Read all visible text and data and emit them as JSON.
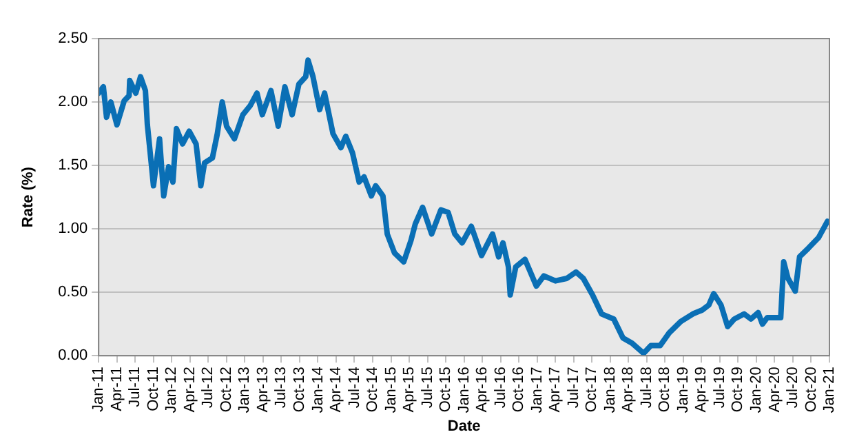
{
  "chart_data": {
    "type": "line",
    "xlabel": "Date",
    "ylabel": "Rate (%)",
    "xlim": [
      "2011-01",
      "2021-01"
    ],
    "xticks": [
      {
        "value": "2011-01",
        "label": "Jan-11"
      },
      {
        "value": "2011-04",
        "label": "Apr-11"
      },
      {
        "value": "2011-07",
        "label": "Jul-11"
      },
      {
        "value": "2011-10",
        "label": "Oct-11"
      },
      {
        "value": "2012-01",
        "label": "Jan-12"
      },
      {
        "value": "2012-04",
        "label": "Apr-12"
      },
      {
        "value": "2012-07",
        "label": "Jul-12"
      },
      {
        "value": "2012-10",
        "label": "Oct-12"
      },
      {
        "value": "2013-01",
        "label": "Jan-13"
      },
      {
        "value": "2013-04",
        "label": "Apr-13"
      },
      {
        "value": "2013-07",
        "label": "Jul-13"
      },
      {
        "value": "2013-10",
        "label": "Oct-13"
      },
      {
        "value": "2014-01",
        "label": "Jan-14"
      },
      {
        "value": "2014-04",
        "label": "Apr-14"
      },
      {
        "value": "2014-07",
        "label": "Jul-14"
      },
      {
        "value": "2014-10",
        "label": "Oct-14"
      },
      {
        "value": "2015-01",
        "label": "Jan-15"
      },
      {
        "value": "2015-04",
        "label": "Apr-15"
      },
      {
        "value": "2015-07",
        "label": "Jul-15"
      },
      {
        "value": "2015-10",
        "label": "Oct-15"
      },
      {
        "value": "2016-01",
        "label": "Jan-16"
      },
      {
        "value": "2016-04",
        "label": "Apr-16"
      },
      {
        "value": "2016-07",
        "label": "Jul-16"
      },
      {
        "value": "2016-10",
        "label": "Oct-16"
      },
      {
        "value": "2017-01",
        "label": "Jan-17"
      },
      {
        "value": "2017-04",
        "label": "Apr-17"
      },
      {
        "value": "2017-07",
        "label": "Jul-17"
      },
      {
        "value": "2017-10",
        "label": "Oct-17"
      },
      {
        "value": "2018-01",
        "label": "Jan-18"
      },
      {
        "value": "2018-04",
        "label": "Apr-18"
      },
      {
        "value": "2018-07",
        "label": "Jul-18"
      },
      {
        "value": "2018-10",
        "label": "Oct-18"
      },
      {
        "value": "2019-01",
        "label": "Jan-19"
      },
      {
        "value": "2019-04",
        "label": "Apr-19"
      },
      {
        "value": "2019-07",
        "label": "Jul-19"
      },
      {
        "value": "2019-10",
        "label": "Oct-19"
      },
      {
        "value": "2020-01",
        "label": "Jan-20"
      },
      {
        "value": "2020-04",
        "label": "Apr-20"
      },
      {
        "value": "2020-07",
        "label": "Jul-20"
      },
      {
        "value": "2020-10",
        "label": "Oct-20"
      },
      {
        "value": "2021-01",
        "label": "Jan-21"
      }
    ],
    "ylim": [
      0,
      2.5
    ],
    "yticks": [
      {
        "value": 0,
        "label": "0.00"
      },
      {
        "value": 0.5,
        "label": "0.50"
      },
      {
        "value": 1,
        "label": "1.00"
      },
      {
        "value": 1.5,
        "label": "1.50"
      },
      {
        "value": 2,
        "label": "2.00"
      },
      {
        "value": 2.5,
        "label": "2.50"
      }
    ],
    "grid": "y",
    "legend": false,
    "marker": "none",
    "line_style": "solid",
    "x": [
      "2011-01-01",
      "2011-01-25",
      "2011-02-10",
      "2011-03-01",
      "2011-04-01",
      "2011-05-07",
      "2011-06-01",
      "2011-06-04",
      "2011-07-04",
      "2011-07-28",
      "2011-08-22",
      "2011-09-01",
      "2011-09-25",
      "2011-10-01",
      "2011-11-01",
      "2011-11-22",
      "2011-12-16",
      "2012-01-07",
      "2012-01-25",
      "2012-02-25",
      "2012-03-28",
      "2012-05-01",
      "2012-05-25",
      "2012-06-13",
      "2012-07-22",
      "2012-08-16",
      "2012-09-10",
      "2012-10-01",
      "2012-11-10",
      "2012-12-22",
      "2013-01-28",
      "2013-03-01",
      "2013-03-28",
      "2013-05-10",
      "2013-06-16",
      "2013-07-19",
      "2013-08-25",
      "2013-09-28",
      "2013-11-01",
      "2013-11-13",
      "2013-12-07",
      "2014-01-10",
      "2014-02-04",
      "2014-03-16",
      "2014-04-25",
      "2014-05-19",
      "2014-06-22",
      "2014-07-25",
      "2014-08-19",
      "2014-09-25",
      "2014-10-16",
      "2014-11-22",
      "2014-12-13",
      "2015-01-19",
      "2015-03-04",
      "2015-04-10",
      "2015-05-01",
      "2015-06-07",
      "2015-07-22",
      "2015-09-07",
      "2015-10-13",
      "2015-11-16",
      "2015-12-22",
      "2016-02-07",
      "2016-03-28",
      "2016-05-22",
      "2016-06-22",
      "2016-07-13",
      "2016-08-10",
      "2016-08-19",
      "2016-09-16",
      "2016-11-01",
      "2016-12-28",
      "2017-02-04",
      "2017-04-01",
      "2017-05-28",
      "2017-07-13",
      "2017-08-19",
      "2017-10-04",
      "2017-11-19",
      "2018-01-19",
      "2018-03-04",
      "2018-04-19",
      "2018-06-16",
      "2018-07-22",
      "2018-09-07",
      "2018-10-22",
      "2018-12-19",
      "2019-02-19",
      "2019-04-04",
      "2019-05-07",
      "2019-06-01",
      "2019-07-07",
      "2019-08-10",
      "2019-09-13",
      "2019-11-01",
      "2019-12-04",
      "2020-01-10",
      "2020-02-01",
      "2020-02-25",
      "2020-05-01",
      "2020-05-16",
      "2020-06-07",
      "2020-07-13",
      "2020-08-04",
      "2020-09-19",
      "2020-11-07",
      "2020-12-22"
    ],
    "series": [
      {
        "color": "#0a6fb5",
        "values": [
          2.07,
          2.12,
          1.88,
          2.0,
          1.82,
          2.01,
          2.05,
          2.17,
          2.07,
          2.2,
          2.09,
          1.82,
          1.45,
          1.34,
          1.71,
          1.26,
          1.49,
          1.37,
          1.79,
          1.67,
          1.77,
          1.67,
          1.34,
          1.52,
          1.56,
          1.75,
          2.0,
          1.81,
          1.71,
          1.9,
          1.97,
          2.07,
          1.9,
          2.09,
          1.81,
          2.12,
          1.9,
          2.14,
          2.2,
          2.33,
          2.2,
          1.94,
          2.07,
          1.75,
          1.64,
          1.73,
          1.6,
          1.37,
          1.41,
          1.26,
          1.34,
          1.26,
          0.96,
          0.81,
          0.74,
          0.91,
          1.04,
          1.17,
          0.96,
          1.15,
          1.13,
          0.96,
          0.89,
          1.02,
          0.79,
          0.96,
          0.78,
          0.89,
          0.7,
          0.48,
          0.7,
          0.76,
          0.55,
          0.63,
          0.59,
          0.61,
          0.66,
          0.61,
          0.48,
          0.33,
          0.29,
          0.14,
          0.1,
          0.02,
          0.08,
          0.08,
          0.18,
          0.27,
          0.33,
          0.36,
          0.4,
          0.49,
          0.4,
          0.23,
          0.29,
          0.33,
          0.29,
          0.34,
          0.25,
          0.3,
          0.3,
          0.74,
          0.61,
          0.51,
          0.78,
          0.85,
          0.93,
          1.06
        ]
      }
    ]
  }
}
